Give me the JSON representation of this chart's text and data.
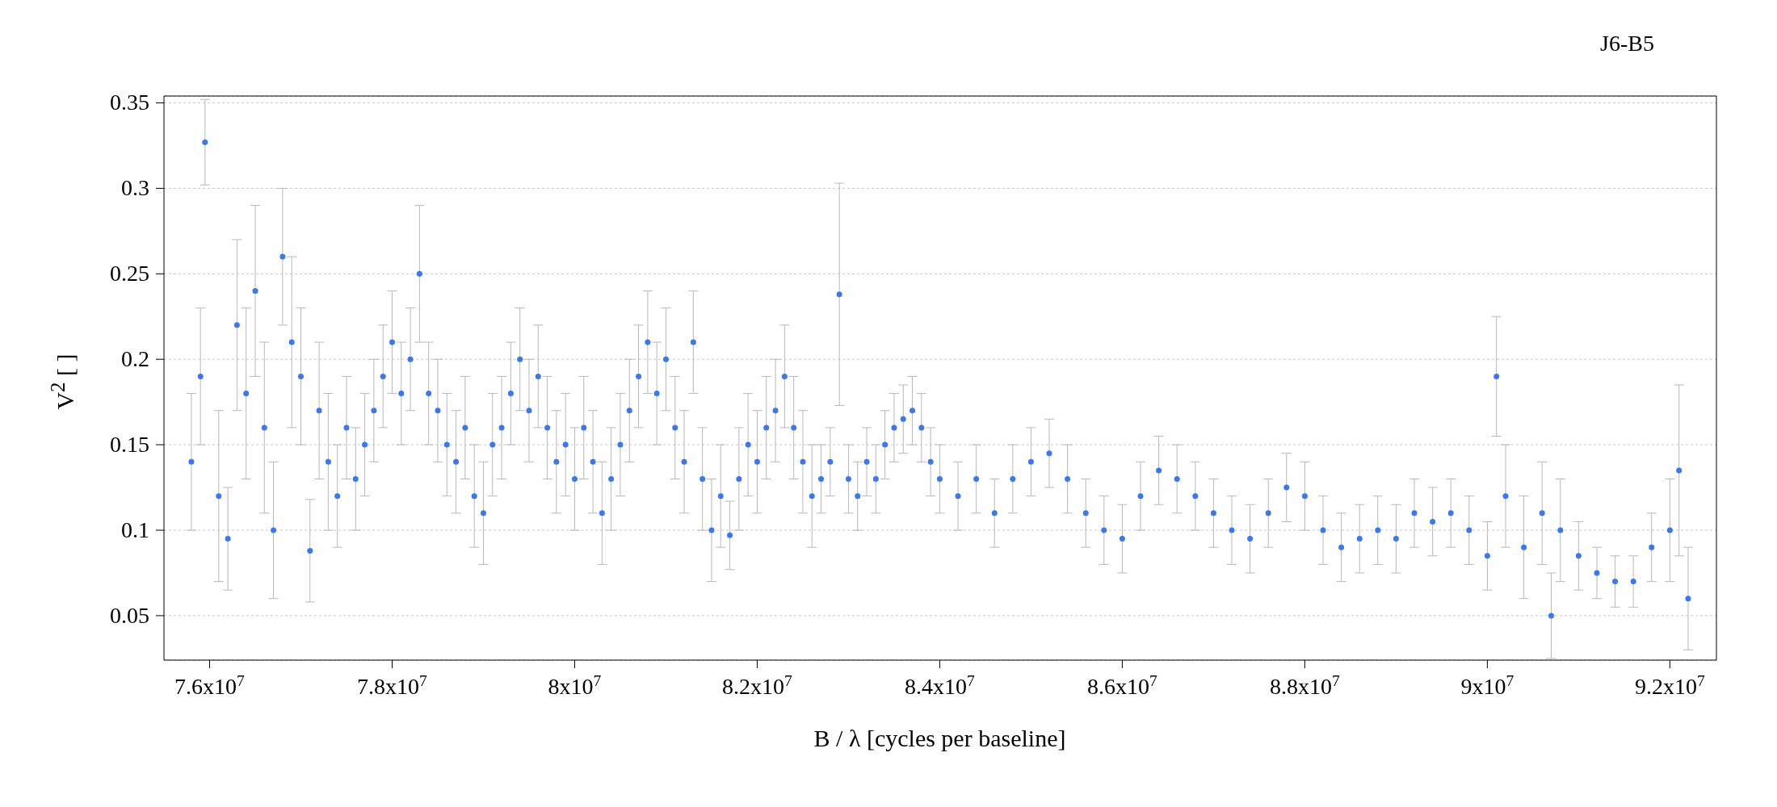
{
  "chart_data": {
    "type": "scatter",
    "title": "J6-B5",
    "xlabel": "B / λ [cycles per baseline]",
    "ylabel": "V$^{2}$ [ ]",
    "xlim": [
      75500000,
      92510000
    ],
    "ylim": [
      0.024,
      0.354
    ],
    "xticks": [
      {
        "value": 76000000,
        "label": "7.6x10$^{7}$"
      },
      {
        "value": 78000000,
        "label": "7.8x10$^{7}$"
      },
      {
        "value": 80000000,
        "label": "8x10$^{7}$"
      },
      {
        "value": 82000000,
        "label": "8.2x10$^{7}$"
      },
      {
        "value": 84000000,
        "label": "8.4x10$^{7}$"
      },
      {
        "value": 86000000,
        "label": "8.6x10$^{7}$"
      },
      {
        "value": 88000000,
        "label": "8.8x10$^{7}$"
      },
      {
        "value": 90000000,
        "label": "9x10$^{7}$"
      },
      {
        "value": 92000000,
        "label": "9.2x10$^{7}$"
      }
    ],
    "yticks": [
      0.05,
      0.1,
      0.15,
      0.2,
      0.25,
      0.3,
      0.35
    ],
    "grid": "y",
    "marker": "circle",
    "legend": false,
    "series": [
      {
        "color": "#3a78f0",
        "x": [
          75800000,
          75900000,
          75950000,
          76100000,
          76200000,
          76300000,
          76400000,
          76500000,
          76600000,
          76700000,
          76800000,
          76900000,
          77000000,
          77100000,
          77200000,
          77300000,
          77400000,
          77500000,
          77600000,
          77700000,
          77800000,
          77900000,
          78000000,
          78100000,
          78200000,
          78300000,
          78400000,
          78500000,
          78600000,
          78700000,
          78800000,
          78900000,
          79000000,
          79100000,
          79200000,
          79300000,
          79400000,
          79500000,
          79600000,
          79700000,
          79800000,
          79900000,
          80000000,
          80100000,
          80200000,
          80300000,
          80400000,
          80500000,
          80600000,
          80700000,
          80800000,
          80900000,
          81000000,
          81100000,
          81200000,
          81300000,
          81400000,
          81500000,
          81600000,
          81700000,
          81800000,
          81900000,
          82000000,
          82100000,
          82200000,
          82300000,
          82400000,
          82500000,
          82600000,
          82700000,
          82800000,
          82900000,
          83000000,
          83100000,
          83200000,
          83300000,
          83400000,
          83500000,
          83600000,
          83700000,
          83800000,
          83900000,
          84000000,
          84200000,
          84400000,
          84600000,
          84800000,
          85000000,
          85200000,
          85400000,
          85600000,
          85800000,
          86000000,
          86200000,
          86400000,
          86600000,
          86800000,
          87000000,
          87200000,
          87400000,
          87600000,
          87800000,
          88000000,
          88200000,
          88400000,
          88600000,
          88800000,
          89000000,
          89200000,
          89400000,
          89600000,
          89800000,
          90000000,
          90100000,
          90200000,
          90400000,
          90600000,
          90700000,
          90800000,
          91000000,
          91200000,
          91400000,
          91600000,
          91800000,
          92000000,
          92100000,
          92200000
        ],
        "values": [
          0.14,
          0.19,
          0.327,
          0.12,
          0.095,
          0.22,
          0.18,
          0.24,
          0.16,
          0.1,
          0.26,
          0.21,
          0.19,
          0.088,
          0.17,
          0.14,
          0.12,
          0.16,
          0.13,
          0.15,
          0.17,
          0.19,
          0.21,
          0.18,
          0.2,
          0.25,
          0.18,
          0.17,
          0.15,
          0.14,
          0.16,
          0.12,
          0.11,
          0.15,
          0.16,
          0.18,
          0.2,
          0.17,
          0.19,
          0.16,
          0.14,
          0.15,
          0.13,
          0.16,
          0.14,
          0.11,
          0.13,
          0.15,
          0.17,
          0.19,
          0.21,
          0.18,
          0.2,
          0.16,
          0.14,
          0.21,
          0.13,
          0.1,
          0.12,
          0.097,
          0.13,
          0.15,
          0.14,
          0.16,
          0.17,
          0.19,
          0.16,
          0.14,
          0.12,
          0.13,
          0.14,
          0.238,
          0.13,
          0.12,
          0.14,
          0.13,
          0.15,
          0.16,
          0.165,
          0.17,
          0.16,
          0.14,
          0.13,
          0.12,
          0.13,
          0.11,
          0.13,
          0.14,
          0.145,
          0.13,
          0.11,
          0.1,
          0.095,
          0.12,
          0.135,
          0.13,
          0.12,
          0.11,
          0.1,
          0.095,
          0.11,
          0.125,
          0.12,
          0.1,
          0.09,
          0.095,
          0.1,
          0.095,
          0.11,
          0.105,
          0.11,
          0.1,
          0.085,
          0.19,
          0.12,
          0.09,
          0.11,
          0.05,
          0.1,
          0.085,
          0.075,
          0.07,
          0.07,
          0.09,
          0.1,
          0.135,
          0.06
        ],
        "errors": [
          0.04,
          0.04,
          0.025,
          0.05,
          0.03,
          0.05,
          0.05,
          0.05,
          0.05,
          0.04,
          0.04,
          0.05,
          0.04,
          0.03,
          0.04,
          0.04,
          0.03,
          0.03,
          0.03,
          0.03,
          0.03,
          0.03,
          0.03,
          0.03,
          0.03,
          0.04,
          0.03,
          0.03,
          0.03,
          0.03,
          0.03,
          0.03,
          0.03,
          0.03,
          0.03,
          0.03,
          0.03,
          0.03,
          0.03,
          0.03,
          0.03,
          0.03,
          0.03,
          0.03,
          0.03,
          0.03,
          0.03,
          0.03,
          0.03,
          0.03,
          0.03,
          0.03,
          0.03,
          0.03,
          0.03,
          0.03,
          0.03,
          0.03,
          0.03,
          0.02,
          0.03,
          0.03,
          0.03,
          0.03,
          0.03,
          0.03,
          0.03,
          0.03,
          0.03,
          0.02,
          0.02,
          0.065,
          0.02,
          0.02,
          0.02,
          0.02,
          0.02,
          0.02,
          0.02,
          0.02,
          0.02,
          0.02,
          0.02,
          0.02,
          0.02,
          0.02,
          0.02,
          0.02,
          0.02,
          0.02,
          0.02,
          0.02,
          0.02,
          0.02,
          0.02,
          0.02,
          0.02,
          0.02,
          0.02,
          0.02,
          0.02,
          0.02,
          0.02,
          0.02,
          0.02,
          0.02,
          0.02,
          0.02,
          0.02,
          0.02,
          0.02,
          0.02,
          0.02,
          0.035,
          0.03,
          0.03,
          0.03,
          0.025,
          0.03,
          0.02,
          0.015,
          0.015,
          0.015,
          0.02,
          0.03,
          0.05,
          0.03
        ]
      }
    ]
  }
}
